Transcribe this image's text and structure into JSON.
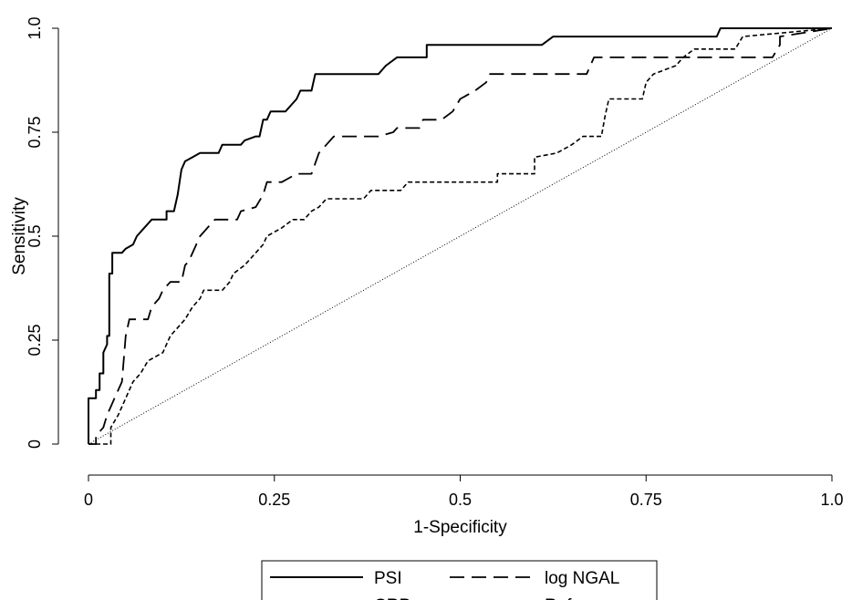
{
  "chart_data": {
    "type": "line",
    "xlabel": "1-Specificity",
    "ylabel": "Sensitivity",
    "xlim": [
      0,
      1
    ],
    "ylim": [
      0,
      1
    ],
    "x_ticks": [
      {
        "value": 0,
        "label": "0"
      },
      {
        "value": 0.25,
        "label": "0.25"
      },
      {
        "value": 0.5,
        "label": "0.5"
      },
      {
        "value": 0.75,
        "label": "0.75"
      },
      {
        "value": 1,
        "label": "1.0"
      }
    ],
    "y_ticks": [
      {
        "value": 0,
        "label": "0"
      },
      {
        "value": 0.25,
        "label": "0.25"
      },
      {
        "value": 0.5,
        "label": "0.5"
      },
      {
        "value": 0.75,
        "label": "0.75"
      },
      {
        "value": 1,
        "label": "1.0"
      }
    ],
    "grid": false,
    "legend": {
      "placement": "bottom",
      "columns": 2
    },
    "series": [
      {
        "name": "PSI",
        "style": "solid",
        "color": "#000000",
        "points": [
          [
            0,
            0
          ],
          [
            0,
            0.11
          ],
          [
            0.01,
            0.11
          ],
          [
            0.01,
            0.13
          ],
          [
            0.015,
            0.13
          ],
          [
            0.015,
            0.17
          ],
          [
            0.02,
            0.17
          ],
          [
            0.02,
            0.22
          ],
          [
            0.025,
            0.24
          ],
          [
            0.025,
            0.26
          ],
          [
            0.028,
            0.26
          ],
          [
            0.028,
            0.41
          ],
          [
            0.032,
            0.41
          ],
          [
            0.032,
            0.46
          ],
          [
            0.045,
            0.46
          ],
          [
            0.05,
            0.47
          ],
          [
            0.06,
            0.48
          ],
          [
            0.065,
            0.5
          ],
          [
            0.075,
            0.52
          ],
          [
            0.085,
            0.54
          ],
          [
            0.105,
            0.54
          ],
          [
            0.105,
            0.56
          ],
          [
            0.115,
            0.56
          ],
          [
            0.12,
            0.6
          ],
          [
            0.125,
            0.66
          ],
          [
            0.13,
            0.68
          ],
          [
            0.14,
            0.69
          ],
          [
            0.15,
            0.7
          ],
          [
            0.175,
            0.7
          ],
          [
            0.18,
            0.72
          ],
          [
            0.205,
            0.72
          ],
          [
            0.21,
            0.73
          ],
          [
            0.225,
            0.74
          ],
          [
            0.23,
            0.74
          ],
          [
            0.235,
            0.78
          ],
          [
            0.24,
            0.78
          ],
          [
            0.245,
            0.8
          ],
          [
            0.265,
            0.8
          ],
          [
            0.28,
            0.83
          ],
          [
            0.285,
            0.85
          ],
          [
            0.3,
            0.85
          ],
          [
            0.305,
            0.89
          ],
          [
            0.39,
            0.89
          ],
          [
            0.4,
            0.91
          ],
          [
            0.415,
            0.93
          ],
          [
            0.455,
            0.93
          ],
          [
            0.455,
            0.96
          ],
          [
            0.61,
            0.96
          ],
          [
            0.625,
            0.98
          ],
          [
            0.845,
            0.98
          ],
          [
            0.85,
            1
          ],
          [
            1,
            1
          ]
        ]
      },
      {
        "name": "log NGAL",
        "style": "longdash",
        "color": "#000000",
        "points": [
          [
            0,
            0
          ],
          [
            0.01,
            0
          ],
          [
            0.01,
            0.02
          ],
          [
            0.02,
            0.04
          ],
          [
            0.025,
            0.07
          ],
          [
            0.03,
            0.09
          ],
          [
            0.035,
            0.11
          ],
          [
            0.04,
            0.13
          ],
          [
            0.045,
            0.15
          ],
          [
            0.05,
            0.26
          ],
          [
            0.055,
            0.3
          ],
          [
            0.08,
            0.3
          ],
          [
            0.085,
            0.33
          ],
          [
            0.095,
            0.35
          ],
          [
            0.1,
            0.37
          ],
          [
            0.11,
            0.39
          ],
          [
            0.125,
            0.39
          ],
          [
            0.13,
            0.43
          ],
          [
            0.135,
            0.44
          ],
          [
            0.145,
            0.48
          ],
          [
            0.15,
            0.5
          ],
          [
            0.16,
            0.52
          ],
          [
            0.17,
            0.54
          ],
          [
            0.2,
            0.54
          ],
          [
            0.205,
            0.56
          ],
          [
            0.225,
            0.57
          ],
          [
            0.235,
            0.6
          ],
          [
            0.24,
            0.63
          ],
          [
            0.26,
            0.63
          ],
          [
            0.28,
            0.65
          ],
          [
            0.3,
            0.65
          ],
          [
            0.31,
            0.7
          ],
          [
            0.32,
            0.72
          ],
          [
            0.33,
            0.74
          ],
          [
            0.39,
            0.74
          ],
          [
            0.41,
            0.75
          ],
          [
            0.415,
            0.76
          ],
          [
            0.445,
            0.76
          ],
          [
            0.45,
            0.78
          ],
          [
            0.475,
            0.78
          ],
          [
            0.49,
            0.8
          ],
          [
            0.5,
            0.83
          ],
          [
            0.52,
            0.85
          ],
          [
            0.535,
            0.87
          ],
          [
            0.54,
            0.89
          ],
          [
            0.67,
            0.89
          ],
          [
            0.68,
            0.93
          ],
          [
            0.92,
            0.93
          ],
          [
            0.93,
            0.96
          ],
          [
            0.93,
            0.98
          ],
          [
            1,
            1
          ]
        ]
      },
      {
        "name": "CRP",
        "style": "shortdash",
        "color": "#000000",
        "points": [
          [
            0,
            0
          ],
          [
            0.03,
            0
          ],
          [
            0.03,
            0.04
          ],
          [
            0.04,
            0.07
          ],
          [
            0.045,
            0.09
          ],
          [
            0.055,
            0.13
          ],
          [
            0.06,
            0.15
          ],
          [
            0.07,
            0.17
          ],
          [
            0.08,
            0.2
          ],
          [
            0.1,
            0.22
          ],
          [
            0.11,
            0.26
          ],
          [
            0.12,
            0.28
          ],
          [
            0.13,
            0.3
          ],
          [
            0.14,
            0.33
          ],
          [
            0.15,
            0.35
          ],
          [
            0.155,
            0.37
          ],
          [
            0.18,
            0.37
          ],
          [
            0.19,
            0.39
          ],
          [
            0.195,
            0.41
          ],
          [
            0.21,
            0.43
          ],
          [
            0.22,
            0.45
          ],
          [
            0.235,
            0.48
          ],
          [
            0.24,
            0.5
          ],
          [
            0.26,
            0.52
          ],
          [
            0.275,
            0.54
          ],
          [
            0.29,
            0.54
          ],
          [
            0.3,
            0.56
          ],
          [
            0.31,
            0.57
          ],
          [
            0.32,
            0.59
          ],
          [
            0.37,
            0.59
          ],
          [
            0.38,
            0.61
          ],
          [
            0.42,
            0.61
          ],
          [
            0.43,
            0.63
          ],
          [
            0.55,
            0.63
          ],
          [
            0.55,
            0.65
          ],
          [
            0.6,
            0.65
          ],
          [
            0.6,
            0.69
          ],
          [
            0.63,
            0.7
          ],
          [
            0.65,
            0.72
          ],
          [
            0.665,
            0.74
          ],
          [
            0.69,
            0.74
          ],
          [
            0.695,
            0.79
          ],
          [
            0.7,
            0.83
          ],
          [
            0.745,
            0.83
          ],
          [
            0.75,
            0.87
          ],
          [
            0.76,
            0.89
          ],
          [
            0.79,
            0.91
          ],
          [
            0.8,
            0.93
          ],
          [
            0.815,
            0.95
          ],
          [
            0.87,
            0.95
          ],
          [
            0.88,
            0.98
          ],
          [
            1,
            1
          ]
        ]
      },
      {
        "name": "Reference",
        "style": "dotted",
        "color": "#000000",
        "points": [
          [
            0,
            0
          ],
          [
            1,
            1
          ]
        ]
      }
    ]
  }
}
